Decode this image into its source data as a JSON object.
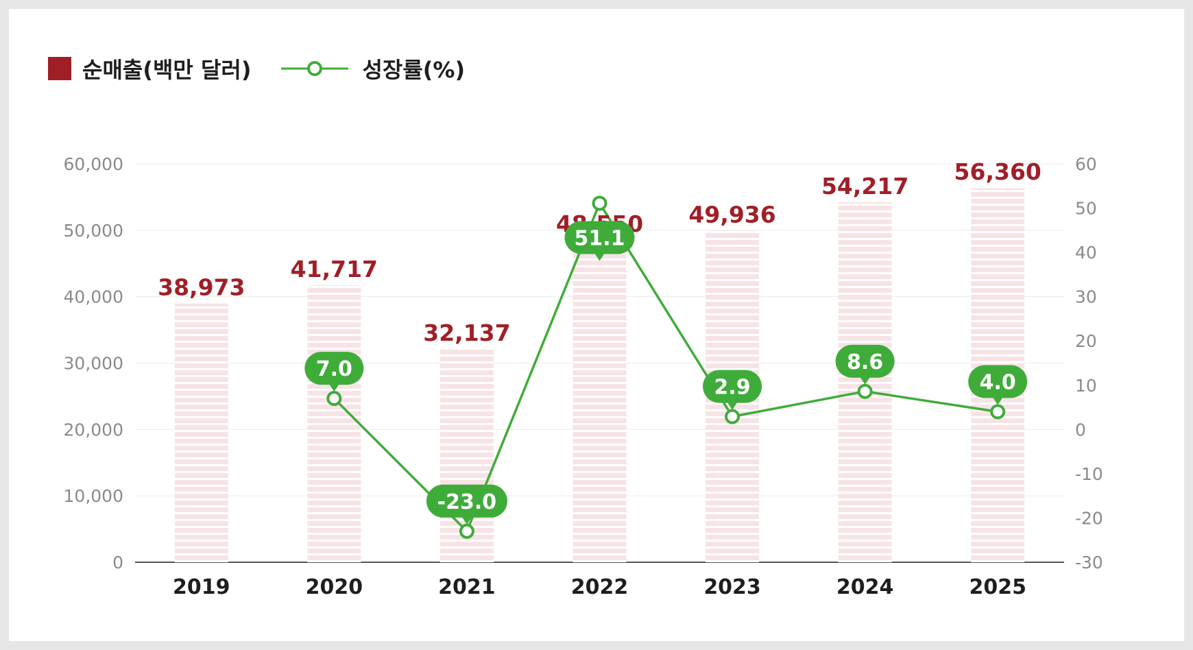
{
  "chart_data": {
    "type": "bar+line",
    "categories": [
      "2019",
      "2020",
      "2021",
      "2022",
      "2023",
      "2024",
      "2025"
    ],
    "series": [
      {
        "name": "순매출(백만 달러)",
        "type": "bar",
        "axis": "left",
        "values": [
          38973,
          41717,
          32137,
          48550,
          49936,
          54217,
          56360
        ],
        "labels": [
          "38,973",
          "41,717",
          "32,137",
          "48,550",
          "49,936",
          "54,217",
          "56,360"
        ]
      },
      {
        "name": "성장률(%)",
        "type": "line",
        "axis": "right",
        "values": [
          null,
          7.0,
          -23.0,
          51.1,
          2.9,
          8.6,
          4.0
        ],
        "labels": [
          "",
          "7.0",
          "-23.0",
          "51.1",
          "2.9",
          "8.6",
          "4.0"
        ]
      }
    ],
    "y_left": {
      "min": 0,
      "max": 60000,
      "ticks": [
        "0",
        "10,000",
        "20,000",
        "30,000",
        "40,000",
        "50,000",
        "60,000"
      ],
      "tick_values": [
        0,
        10000,
        20000,
        30000,
        40000,
        50000,
        60000
      ]
    },
    "y_right": {
      "min": -30,
      "max": 60,
      "ticks": [
        "-30",
        "-20",
        "-10",
        "0",
        "10",
        "20",
        "30",
        "40",
        "50",
        "60"
      ],
      "tick_values": [
        -30,
        -20,
        -10,
        0,
        10,
        20,
        30,
        40,
        50,
        60
      ]
    },
    "grid": true,
    "legend_position": "top-left",
    "colors": {
      "bar": "#a01f27",
      "bar_fill": "#f7e3e5",
      "bar_label": "#a01f27",
      "line": "#3fac3a",
      "line_label_bg": "#3fac3a",
      "line_label_text": "#ffffff",
      "axis_text": "#8a8a8a",
      "category_text": "#1e1e1e",
      "grid": "#ececec",
      "axis": "#555555"
    }
  }
}
